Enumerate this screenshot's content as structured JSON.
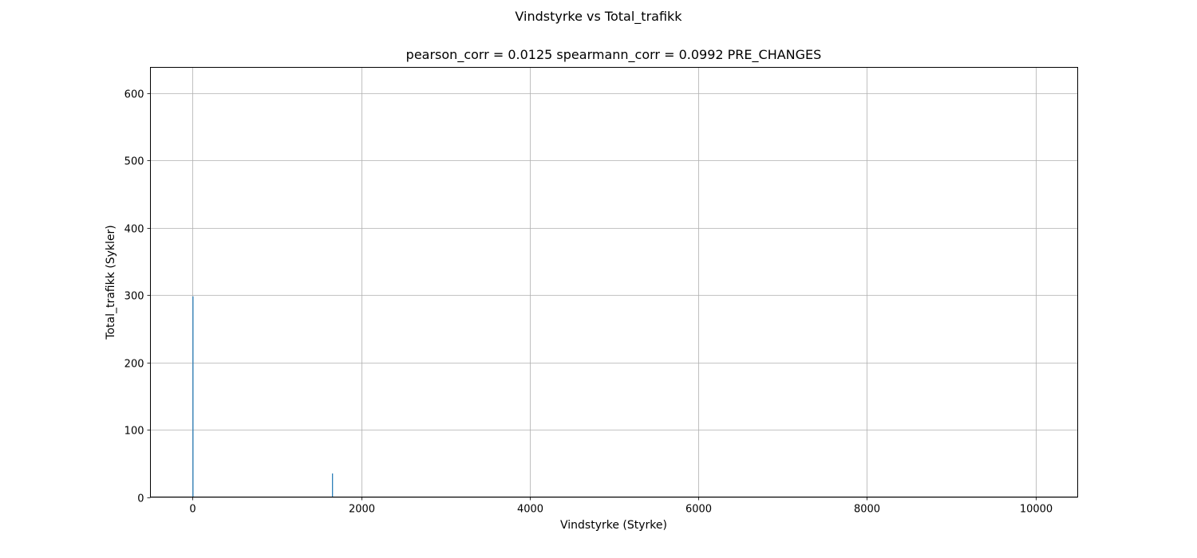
{
  "figure": {
    "suptitle": "Vindstyrke vs Total_trafikk",
    "axes_title": "pearson_corr = 0.0125 spearmann_corr = 0.0992 PRE_CHANGES"
  },
  "chart_data": {
    "type": "bar",
    "title": "pearson_corr = 0.0125 spearmann_corr = 0.0992 PRE_CHANGES",
    "xlabel": "Vindstyrke (Styrke)",
    "ylabel": "Total_trafikk (Sykler)",
    "xlim": [
      -500,
      10500
    ],
    "ylim": [
      0,
      638
    ],
    "xticks": [
      0,
      2000,
      4000,
      6000,
      8000,
      10000
    ],
    "yticks": [
      0,
      100,
      200,
      300,
      400,
      500,
      600
    ],
    "grid": true,
    "bar_color": "#1f77b4",
    "x": [
      5,
      1660
    ],
    "values": [
      298,
      35
    ]
  }
}
